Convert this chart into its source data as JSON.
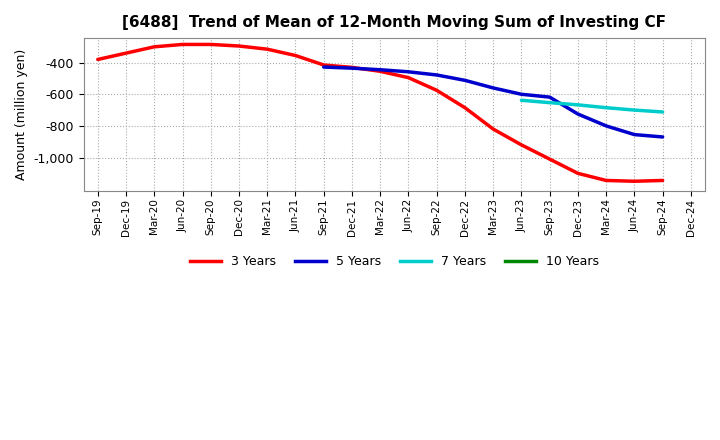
{
  "title": "[6488]  Trend of Mean of 12-Month Moving Sum of Investing CF",
  "ylabel": "Amount (million yen)",
  "background_color": "#ffffff",
  "plot_bg_color": "#ffffff",
  "grid_color": "#aaaaaa",
  "ylim": [
    -1210,
    -245
  ],
  "yticks": [
    -400,
    -600,
    -800,
    -1000
  ],
  "series": {
    "3yr": {
      "color": "#ff0000",
      "label": "3 Years",
      "x": [
        "Sep-19",
        "Dec-19",
        "Mar-20",
        "Jun-20",
        "Sep-20",
        "Dec-20",
        "Mar-21",
        "Jun-21",
        "Sep-21",
        "Dec-21",
        "Mar-22",
        "Jun-22",
        "Sep-22",
        "Dec-22",
        "Mar-23",
        "Jun-23",
        "Sep-23",
        "Dec-23",
        "Mar-24",
        "Jun-24",
        "Sep-24"
      ],
      "y": [
        -380,
        -340,
        -300,
        -285,
        -285,
        -295,
        -315,
        -355,
        -415,
        -430,
        -455,
        -495,
        -575,
        -685,
        -820,
        -920,
        -1010,
        -1100,
        -1145,
        -1150,
        -1145
      ]
    },
    "5yr": {
      "color": "#0000cc",
      "label": "5 Years",
      "x": [
        "Sep-21",
        "Dec-21",
        "Mar-22",
        "Jun-22",
        "Sep-22",
        "Dec-22",
        "Mar-23",
        "Jun-23",
        "Sep-23",
        "Dec-23",
        "Mar-24",
        "Jun-24",
        "Sep-24"
      ],
      "y": [
        -428,
        -435,
        -445,
        -458,
        -478,
        -512,
        -560,
        -600,
        -618,
        -725,
        -800,
        -855,
        -870
      ]
    },
    "7yr": {
      "color": "#00cccc",
      "label": "7 Years",
      "x": [
        "Jun-23",
        "Sep-23",
        "Dec-23",
        "Mar-24",
        "Jun-24",
        "Sep-24"
      ],
      "y": [
        -638,
        -653,
        -667,
        -685,
        -700,
        -712
      ]
    },
    "10yr": {
      "color": "#008800",
      "label": "10 Years",
      "x": [],
      "y": []
    }
  },
  "xticks": [
    "Sep-19",
    "Dec-19",
    "Mar-20",
    "Jun-20",
    "Sep-20",
    "Dec-20",
    "Mar-21",
    "Jun-21",
    "Sep-21",
    "Dec-21",
    "Mar-22",
    "Jun-22",
    "Sep-22",
    "Dec-22",
    "Mar-23",
    "Jun-23",
    "Sep-23",
    "Dec-23",
    "Mar-24",
    "Jun-24",
    "Sep-24",
    "Dec-24"
  ],
  "linewidth": 2.5
}
